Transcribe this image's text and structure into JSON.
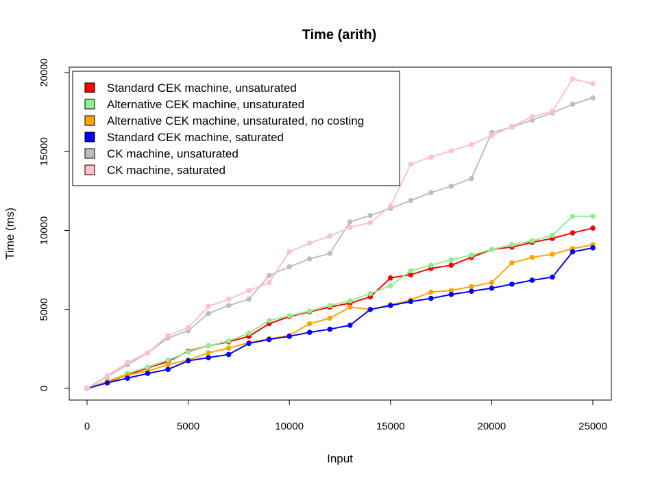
{
  "chart_data": {
    "type": "line",
    "title": "Time (arith)",
    "xlabel": "Input",
    "ylabel": "Time (ms)",
    "xlim": [
      0,
      25000
    ],
    "ylim": [
      0,
      20000
    ],
    "xticks": [
      0,
      5000,
      10000,
      15000,
      20000,
      25000
    ],
    "yticks": [
      0,
      5000,
      10000,
      15000,
      20000
    ],
    "grid": false,
    "legend_position": "top-left",
    "x": [
      0,
      1000,
      2000,
      3000,
      4000,
      5000,
      6000,
      7000,
      8000,
      9000,
      10000,
      11000,
      12000,
      13000,
      14000,
      15000,
      16000,
      17000,
      18000,
      19000,
      20000,
      21000,
      22000,
      23000,
      24000,
      25000
    ],
    "series": [
      {
        "name": "Standard CEK machine, unsaturated",
        "color": "#ff0000",
        "values": [
          0,
          400,
          850,
          1300,
          1700,
          2350,
          2700,
          2950,
          3300,
          4100,
          4550,
          4850,
          5150,
          5400,
          5800,
          7000,
          7200,
          7600,
          7800,
          8300,
          8800,
          8950,
          9250,
          9500,
          9850,
          10150
        ]
      },
      {
        "name": "Alternative CEK machine, unsaturated",
        "color": "#90ee90",
        "values": [
          0,
          450,
          950,
          1350,
          1800,
          2300,
          2700,
          3000,
          3500,
          4300,
          4600,
          4900,
          5250,
          5550,
          6000,
          6500,
          7450,
          7800,
          8150,
          8450,
          8800,
          9100,
          9350,
          9700,
          10900,
          10900
        ]
      },
      {
        "name": "Alternative CEK machine, unsaturated, no costing",
        "color": "#ffa500",
        "values": [
          0,
          450,
          850,
          1100,
          1500,
          1800,
          2250,
          2550,
          2900,
          3150,
          3350,
          4100,
          4450,
          5150,
          5000,
          5300,
          5600,
          6100,
          6200,
          6450,
          6700,
          7950,
          8300,
          8500,
          8850,
          9100
        ]
      },
      {
        "name": "Standard CEK machine, saturated",
        "color": "#0000ff",
        "values": [
          0,
          350,
          650,
          950,
          1200,
          1750,
          1950,
          2150,
          2850,
          3100,
          3300,
          3550,
          3750,
          4000,
          5000,
          5250,
          5500,
          5700,
          5950,
          6150,
          6350,
          6600,
          6850,
          7050,
          8650,
          8900
        ]
      },
      {
        "name": "CK machine, unsaturated",
        "color": "#bebebe",
        "values": [
          0,
          750,
          1500,
          2250,
          3200,
          3650,
          4750,
          5250,
          5650,
          7150,
          7700,
          8200,
          8550,
          10550,
          10950,
          11400,
          11900,
          12400,
          12800,
          13300,
          16200,
          16550,
          17000,
          17450,
          18000,
          18400
        ]
      },
      {
        "name": "CK machine, saturated",
        "color": "#ffc0cb",
        "values": [
          0,
          800,
          1650,
          2250,
          3350,
          3850,
          5200,
          5650,
          6200,
          6700,
          8650,
          9200,
          9650,
          10200,
          10500,
          11550,
          14200,
          14650,
          15050,
          15450,
          16000,
          16600,
          17200,
          17550,
          19600,
          19300
        ]
      }
    ]
  }
}
